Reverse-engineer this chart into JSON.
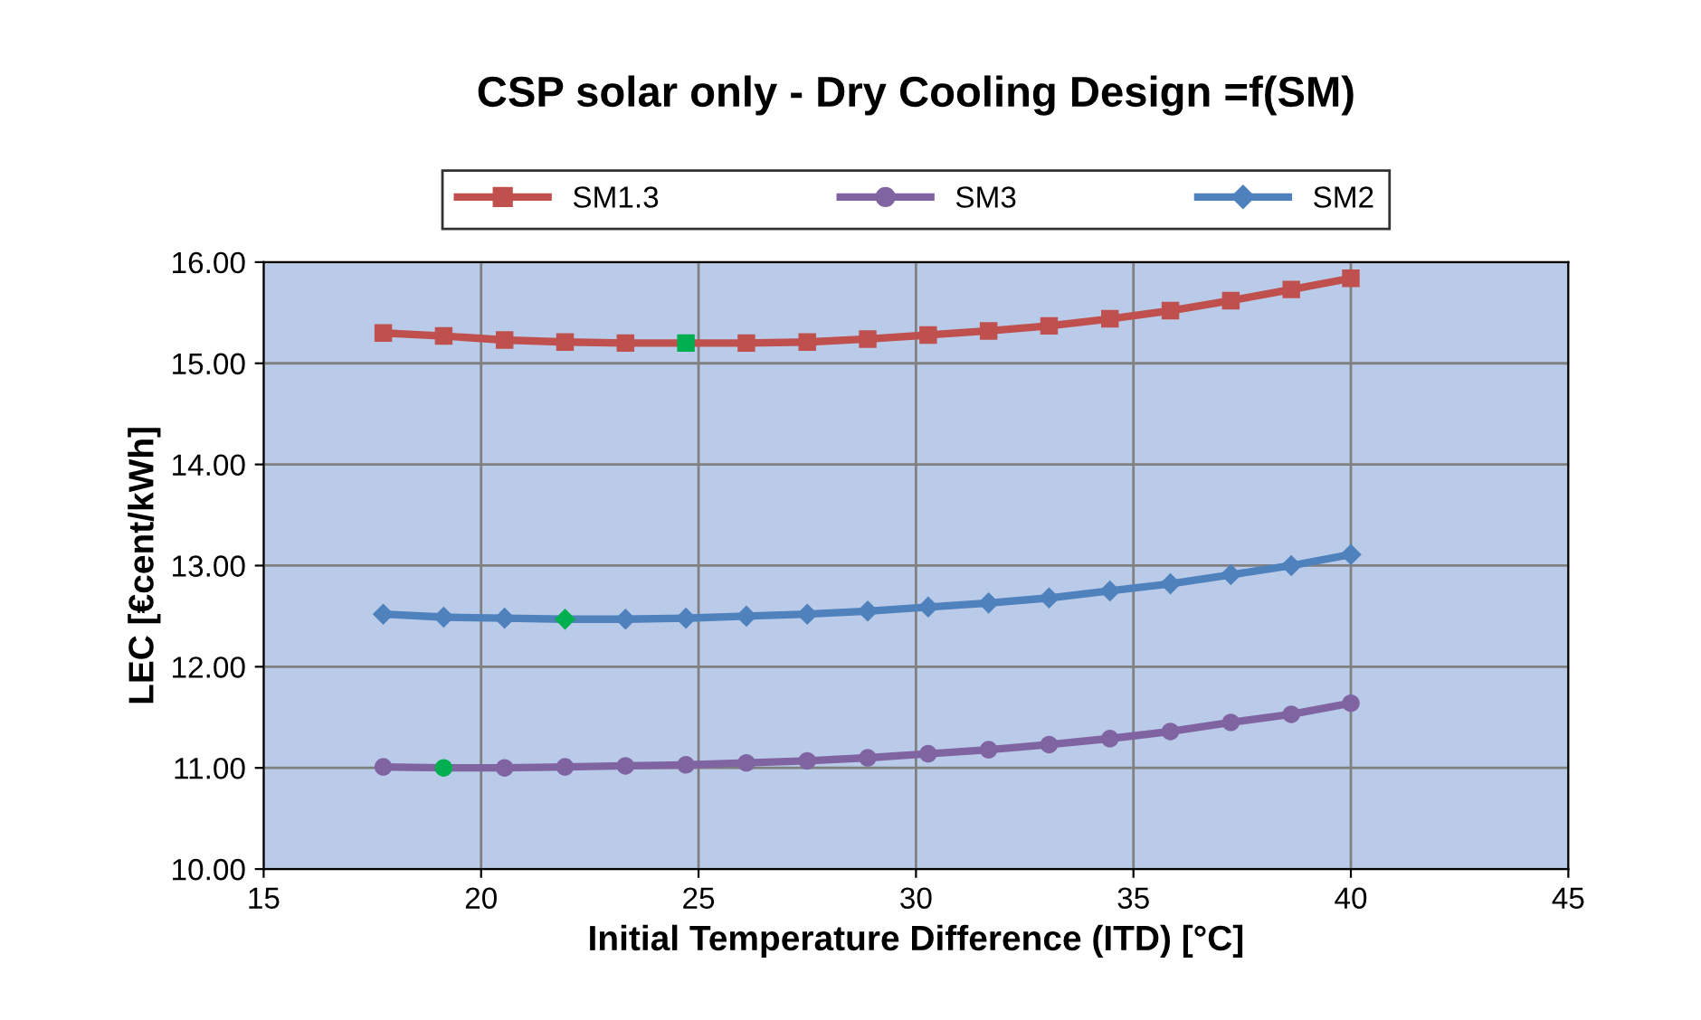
{
  "chart_data": {
    "type": "line",
    "title": "CSP solar only - Dry Cooling Design =f(SM)",
    "xlabel": "Initial Temperature Difference (ITD) [°C]",
    "ylabel": "LEC [€cent/kWh]",
    "x": [
      17.75,
      19.14,
      20.54,
      21.93,
      23.32,
      24.71,
      26.1,
      27.5,
      28.89,
      30.28,
      31.67,
      33.06,
      34.46,
      35.85,
      37.24,
      38.63,
      40.0
    ],
    "series": [
      {
        "name": "SM1.3",
        "color": "#c0504d",
        "marker": "square",
        "values": [
          15.3,
          15.27,
          15.23,
          15.21,
          15.2,
          15.2,
          15.2,
          15.21,
          15.24,
          15.28,
          15.32,
          15.37,
          15.44,
          15.52,
          15.62,
          15.73,
          15.84
        ],
        "colors": [
          "#c0504d",
          "#c0504d",
          "#c0504d",
          "#c0504d",
          "#c0504d",
          "#00b050",
          "#c0504d",
          "#c0504d",
          "#c0504d",
          "#c0504d",
          "#c0504d",
          "#c0504d",
          "#c0504d",
          "#c0504d",
          "#c0504d",
          "#c0504d",
          "#c0504d"
        ]
      },
      {
        "name": "SM3",
        "color": "#8064a2",
        "marker": "circle",
        "values": [
          11.01,
          11.0,
          11.0,
          11.01,
          11.02,
          11.03,
          11.05,
          11.07,
          11.1,
          11.14,
          11.18,
          11.23,
          11.29,
          11.36,
          11.45,
          11.53,
          11.64
        ],
        "colors": [
          "#8064a2",
          "#00b050",
          "#8064a2",
          "#8064a2",
          "#8064a2",
          "#8064a2",
          "#8064a2",
          "#8064a2",
          "#8064a2",
          "#8064a2",
          "#8064a2",
          "#8064a2",
          "#8064a2",
          "#8064a2",
          "#8064a2",
          "#8064a2",
          "#8064a2"
        ]
      },
      {
        "name": "SM2",
        "color": "#4f81bd",
        "marker": "diamond",
        "values": [
          12.52,
          12.49,
          12.48,
          12.47,
          12.47,
          12.48,
          12.5,
          12.52,
          12.55,
          12.59,
          12.63,
          12.68,
          12.75,
          12.82,
          12.91,
          13.0,
          13.11
        ],
        "colors": [
          "#4f81bd",
          "#4f81bd",
          "#4f81bd",
          "#00b050",
          "#4f81bd",
          "#4f81bd",
          "#4f81bd",
          "#4f81bd",
          "#4f81bd",
          "#4f81bd",
          "#4f81bd",
          "#4f81bd",
          "#4f81bd",
          "#4f81bd",
          "#4f81bd",
          "#4f81bd",
          "#4f81bd"
        ]
      }
    ],
    "xlim": [
      15,
      45
    ],
    "xticks": [
      15,
      20,
      25,
      30,
      35,
      40,
      45
    ],
    "ylim": [
      10,
      16
    ],
    "yticks": [
      {
        "value": 10,
        "label": "10.00"
      },
      {
        "value": 11,
        "label": "11.00"
      },
      {
        "value": 12,
        "label": "12.00"
      },
      {
        "value": 13,
        "label": "13.00"
      },
      {
        "value": 14,
        "label": "14.00"
      },
      {
        "value": 15,
        "label": "15.00"
      },
      {
        "value": 16,
        "label": "16.00"
      }
    ],
    "grid": true,
    "legend": "top",
    "line_style": "solid"
  }
}
